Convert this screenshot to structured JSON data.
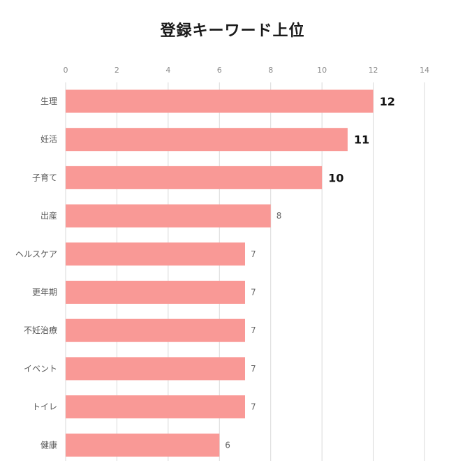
{
  "chart_data": {
    "type": "bar",
    "orientation": "horizontal",
    "title": "登録キーワード上位",
    "xlabel": "",
    "ylabel": "",
    "xlim": [
      0,
      14
    ],
    "x_ticks": [
      0,
      2,
      4,
      6,
      8,
      10,
      12,
      14
    ],
    "grid": true,
    "categories": [
      "生理",
      "妊活",
      "子育て",
      "出産",
      "ヘルスケア",
      "更年期",
      "不妊治療",
      "イベント",
      "トイレ",
      "健康"
    ],
    "values": [
      12,
      11,
      10,
      8,
      7,
      7,
      7,
      7,
      7,
      6
    ],
    "bar_color": "#f99996",
    "highlight_top_n": 3
  }
}
